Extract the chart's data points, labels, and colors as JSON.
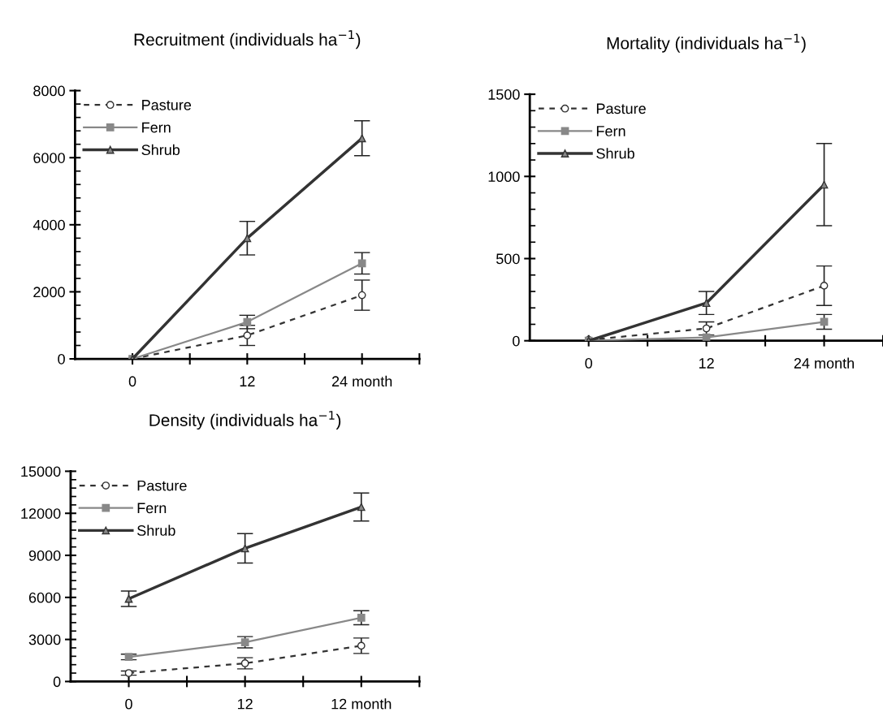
{
  "chart_data": [
    {
      "type": "line",
      "title": "Recruitment (individuals ha$^{−1}$)",
      "categories": [
        "0",
        "12",
        "24 month"
      ],
      "ylim": [
        0,
        8000
      ],
      "yticks": [
        0,
        2000,
        4000,
        6000,
        8000
      ],
      "legend": "top left",
      "grid": false,
      "series": [
        {
          "name": "Pasture",
          "color": "#333333",
          "line_style": "dashed",
          "marker": "circle",
          "values": [
            0,
            700,
            1900
          ],
          "errors": [
            null,
            300,
            450
          ]
        },
        {
          "name": "Fern",
          "color": "#888888",
          "line_style": "solid",
          "marker": "square",
          "values": [
            0,
            1100,
            2850
          ],
          "errors": [
            null,
            200,
            320
          ]
        },
        {
          "name": "Shrub",
          "color": "#333333",
          "line_style": "solid",
          "marker": "triangle",
          "values": [
            0,
            3600,
            6580
          ],
          "errors": [
            null,
            500,
            520
          ]
        }
      ]
    },
    {
      "type": "line",
      "title": "Mortality (individuals ha$^{−1}$)",
      "categories": [
        "0",
        "12",
        "24 month"
      ],
      "ylim": [
        0,
        1500
      ],
      "yticks": [
        0,
        500,
        1000,
        1500
      ],
      "legend": "top left",
      "grid": false,
      "series": [
        {
          "name": "Pasture",
          "color": "#333333",
          "line_style": "dashed",
          "marker": "circle",
          "values": [
            5,
            75,
            335
          ],
          "errors": [
            null,
            40,
            120
          ]
        },
        {
          "name": "Fern",
          "color": "#888888",
          "line_style": "solid",
          "marker": "square",
          "values": [
            0,
            20,
            115
          ],
          "errors": [
            null,
            null,
            45
          ]
        },
        {
          "name": "Shrub",
          "color": "#333333",
          "line_style": "solid",
          "marker": "triangle",
          "values": [
            0,
            230,
            950
          ],
          "errors": [
            null,
            70,
            250
          ]
        }
      ]
    },
    {
      "type": "line",
      "title": "Density (individuals ha$^{−1}$)",
      "categories": [
        "0",
        "12",
        "12 month"
      ],
      "ylim": [
        0,
        15000
      ],
      "yticks": [
        0,
        3000,
        6000,
        9000,
        12000,
        15000
      ],
      "legend": "top left",
      "grid": false,
      "series": [
        {
          "name": "Pasture",
          "color": "#333333",
          "line_style": "dashed",
          "marker": "circle",
          "values": [
            600,
            1300,
            2550
          ],
          "errors": [
            150,
            400,
            550
          ]
        },
        {
          "name": "Fern",
          "color": "#888888",
          "line_style": "solid",
          "marker": "square",
          "values": [
            1750,
            2800,
            4550
          ],
          "errors": [
            200,
            400,
            500
          ]
        },
        {
          "name": "Shrub",
          "color": "#333333",
          "line_style": "solid",
          "marker": "triangle",
          "values": [
            5900,
            9500,
            12450
          ],
          "errors": [
            550,
            1050,
            1000
          ]
        }
      ]
    }
  ]
}
